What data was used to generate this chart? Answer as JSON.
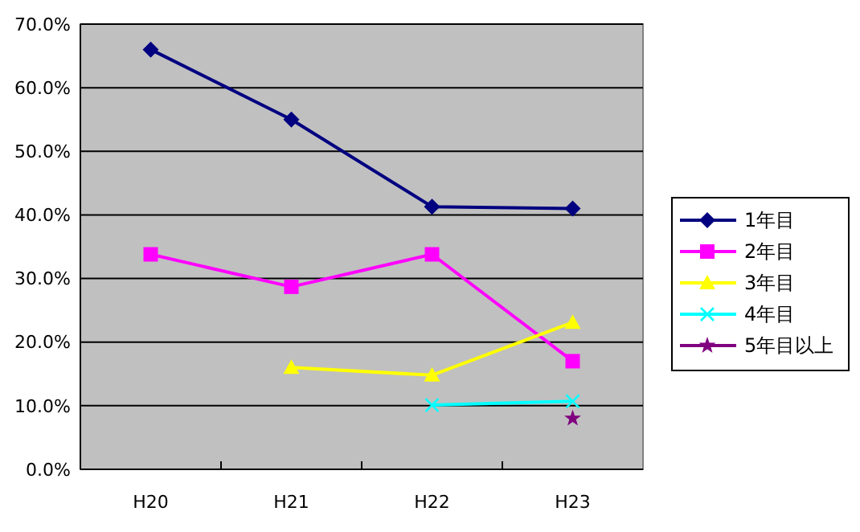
{
  "chart_data": {
    "type": "line",
    "categories": [
      "H20",
      "H21",
      "H22",
      "H23"
    ],
    "series": [
      {
        "name": "1年目",
        "color": "#000080",
        "marker": "diamond",
        "values": [
          66.0,
          55.0,
          41.3,
          41.0
        ]
      },
      {
        "name": "2年目",
        "color": "#ff00ff",
        "marker": "square",
        "values": [
          33.8,
          28.7,
          33.8,
          17.0
        ]
      },
      {
        "name": "3年目",
        "color": "#ffff00",
        "marker": "triangle",
        "values": [
          null,
          16.0,
          14.8,
          23.1
        ]
      },
      {
        "name": "4年目",
        "color": "#00ffff",
        "marker": "cross",
        "values": [
          null,
          null,
          10.1,
          10.7
        ]
      },
      {
        "name": "5年目以上",
        "color": "#800080",
        "marker": "star",
        "values": [
          null,
          null,
          null,
          8.0
        ]
      }
    ],
    "ylim": [
      0,
      70
    ],
    "yticks": [
      {
        "value": 0,
        "label": "0.0%"
      },
      {
        "value": 10,
        "label": "10.0%"
      },
      {
        "value": 20,
        "label": "20.0%"
      },
      {
        "value": 30,
        "label": "30.0%"
      },
      {
        "value": 40,
        "label": "40.0%"
      },
      {
        "value": 50,
        "label": "50.0%"
      },
      {
        "value": 60,
        "label": "60.0%"
      },
      {
        "value": 70,
        "label": "70.0%"
      }
    ],
    "grid": "y",
    "legend": "right"
  }
}
